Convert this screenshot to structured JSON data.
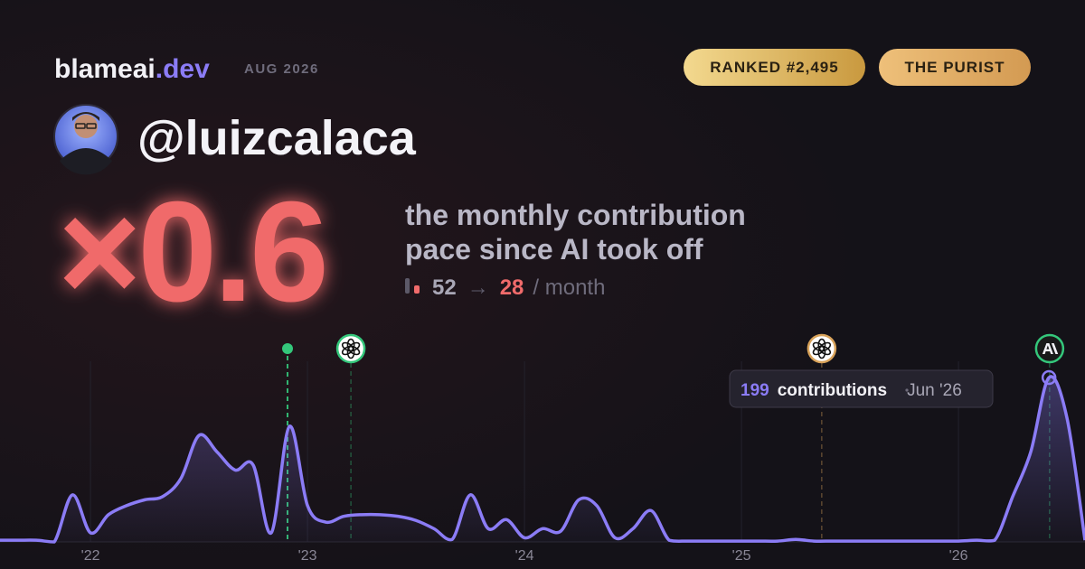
{
  "header": {
    "brand": "blameai",
    "brand_tld": ".dev",
    "date": "AUG 2026",
    "badges": [
      "RANKED #2,495",
      "THE PURIST"
    ]
  },
  "user": {
    "handle": "@luizcalaca"
  },
  "headline": {
    "multiplier": "×0.6",
    "caption_line1": "the monthly contribution",
    "caption_line2": "pace since AI took off",
    "before": 52,
    "arrow": "→",
    "after": 28,
    "unit": "/ month"
  },
  "chart_data": {
    "type": "area",
    "color": "#8b7cf6",
    "x": [
      2021.583,
      2021.667,
      2021.75,
      2021.833,
      2021.917,
      2022.0,
      2022.083,
      2022.167,
      2022.25,
      2022.333,
      2022.417,
      2022.5,
      2022.583,
      2022.667,
      2022.75,
      2022.833,
      2022.917,
      2023.0,
      2023.083,
      2023.167,
      2023.25,
      2023.333,
      2023.417,
      2023.5,
      2023.583,
      2023.667,
      2023.75,
      2023.833,
      2023.917,
      2024.0,
      2024.083,
      2024.167,
      2024.25,
      2024.333,
      2024.417,
      2024.5,
      2024.583,
      2024.667,
      2024.75,
      2024.833,
      2024.917,
      2025.0,
      2025.083,
      2025.167,
      2025.25,
      2025.333,
      2025.417,
      2025.5,
      2025.583,
      2025.667,
      2025.75,
      2025.833,
      2025.917,
      2026.0,
      2026.083,
      2026.167,
      2026.25,
      2026.333,
      2026.417,
      2026.5,
      2026.583
    ],
    "series": [
      {
        "name": "contributions",
        "color": "#8b7cf6",
        "values": [
          2,
          2,
          2,
          0,
          57,
          11,
          33,
          44,
          51,
          55,
          77,
          129,
          109,
          87,
          93,
          11,
          140,
          44,
          24,
          31,
          33,
          33,
          31,
          26,
          16,
          3,
          57,
          16,
          27,
          5,
          16,
          13,
          51,
          44,
          5,
          16,
          38,
          2,
          1,
          1,
          1,
          1,
          1,
          1,
          3,
          1,
          1,
          1,
          1,
          1,
          1,
          1,
          1,
          1,
          2,
          2,
          55,
          109,
          199,
          150,
          2
        ]
      }
    ],
    "xlim": [
      2021.583,
      2026.583
    ],
    "ylim": [
      0,
      210
    ],
    "xticks": [
      {
        "value": 2022,
        "label": "'22"
      },
      {
        "value": 2023,
        "label": "'23"
      },
      {
        "value": 2024,
        "label": "'24"
      },
      {
        "value": 2025,
        "label": "'25"
      },
      {
        "value": 2026,
        "label": "'26"
      }
    ],
    "grid": true,
    "events": [
      {
        "x": 2022.908,
        "color": "#34c77b",
        "icon": "dot"
      },
      {
        "x": 2023.2,
        "color": "#34c77b",
        "icon": "openai"
      },
      {
        "x": 2025.37,
        "color": "#d9a35a",
        "icon": "openai"
      },
      {
        "x": 2026.42,
        "color": "#34c77b",
        "icon": "anthropic"
      }
    ],
    "tooltip": {
      "value": 199,
      "label": "contributions",
      "x_label": "Jun '26"
    }
  }
}
